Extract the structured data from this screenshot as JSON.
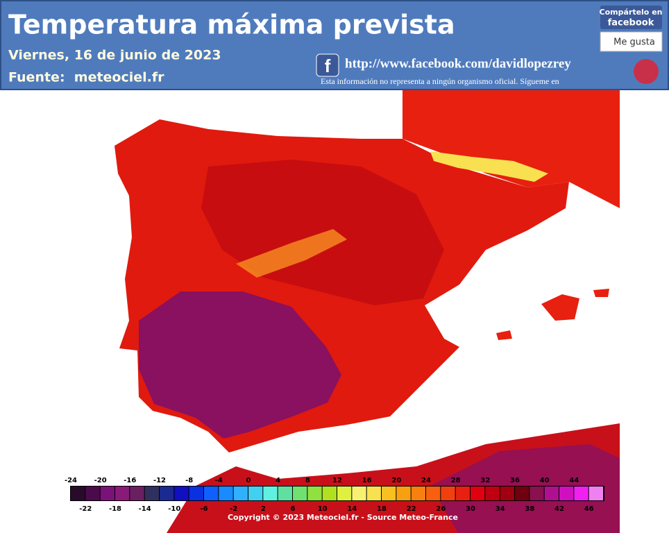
{
  "header": {
    "title": "Temperatura máxima prevista",
    "date": "Viernes, 16 de junio de 2023",
    "source": "Fuente:  meteociel.fr",
    "facebook_url": "http://www.facebook.com/davidlopezrey",
    "disclaimer": "Esta información no representa a ningún organismo oficial. Sígueme en",
    "share_line1": "Compártelo en",
    "share_line2": "facebook",
    "like": "Me gusta"
  },
  "legend": {
    "values": [
      -24,
      -22,
      -20,
      -18,
      -16,
      -14,
      -12,
      -10,
      -8,
      -6,
      -4,
      -2,
      0,
      2,
      4,
      6,
      8,
      10,
      12,
      14,
      16,
      18,
      20,
      22,
      24,
      26,
      28,
      30,
      32,
      34,
      36,
      38,
      40,
      42,
      44,
      46
    ],
    "colors": [
      "#2a0a2a",
      "#4b0a4b",
      "#7a127a",
      "#8a1a7a",
      "#6a2060",
      "#303060",
      "#1a2a90",
      "#1010c0",
      "#0a30e0",
      "#1060ff",
      "#1a8aff",
      "#30b0ff",
      "#40d0f0",
      "#60f0e0",
      "#60e0a0",
      "#70e070",
      "#90e040",
      "#b0e020",
      "#e0f040",
      "#f8f070",
      "#f8e050",
      "#f8c020",
      "#f8a010",
      "#f88010",
      "#f86010",
      "#f04010",
      "#e82010",
      "#e00010",
      "#c00010",
      "#a00010",
      "#700010",
      "#8a1050",
      "#b01090",
      "#d010c0",
      "#f020f0",
      "#f080f0"
    ]
  },
  "copyright": "Copyright © 2023 Meteociel.fr - Source Meteo-France"
}
